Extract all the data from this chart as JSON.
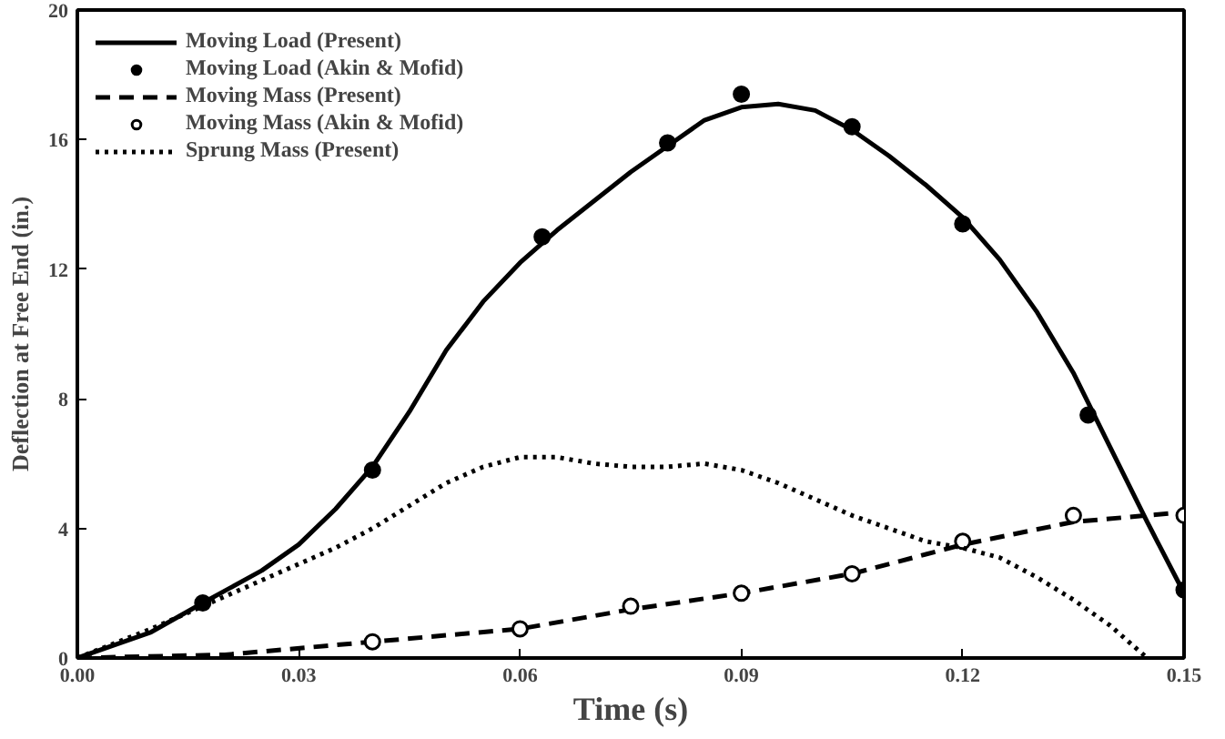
{
  "chart_data": {
    "type": "line",
    "xlabel": "Time (s)",
    "ylabel": "Deflection at Free End (in.)",
    "xlim": [
      0,
      0.15
    ],
    "ylim": [
      0,
      20
    ],
    "xticks": [
      {
        "value": 0,
        "label": "0.00"
      },
      {
        "value": 0.03,
        "label": "0.03"
      },
      {
        "value": 0.06,
        "label": "0.06"
      },
      {
        "value": 0.09,
        "label": "0.09"
      },
      {
        "value": 0.12,
        "label": "0.12"
      },
      {
        "value": 0.15,
        "label": "0.15"
      }
    ],
    "yticks": [
      0,
      4,
      8,
      12,
      16,
      20
    ],
    "grid": false,
    "legend": "top left",
    "series": [
      {
        "name": "Moving Load (Present)",
        "line_style": "solid",
        "color": "#000000",
        "x": [
          0,
          0.01,
          0.017,
          0.025,
          0.03,
          0.035,
          0.04,
          0.045,
          0.05,
          0.055,
          0.06,
          0.065,
          0.07,
          0.075,
          0.08,
          0.085,
          0.09,
          0.095,
          0.1,
          0.105,
          0.11,
          0.115,
          0.12,
          0.125,
          0.13,
          0.135,
          0.14,
          0.145,
          0.15
        ],
        "values": [
          0,
          0.8,
          1.7,
          2.7,
          3.5,
          4.6,
          5.9,
          7.6,
          9.5,
          11.0,
          12.2,
          13.2,
          14.1,
          15.0,
          15.8,
          16.6,
          17.0,
          17.1,
          16.9,
          16.3,
          15.5,
          14.6,
          13.6,
          12.3,
          10.7,
          8.8,
          6.5,
          4.2,
          2.0
        ]
      },
      {
        "name": "Moving Load (Akin & Mofid)",
        "type": "scatter",
        "marker": "circle",
        "color": "#000000",
        "x": [
          0.017,
          0.04,
          0.063,
          0.08,
          0.09,
          0.105,
          0.12,
          0.137,
          0.15
        ],
        "values": [
          1.7,
          5.8,
          13.0,
          15.9,
          17.4,
          16.4,
          13.4,
          7.5,
          2.1
        ]
      },
      {
        "name": "Moving Mass (Present)",
        "line_style": "dashed",
        "color": "#000000",
        "x": [
          0,
          0.02,
          0.04,
          0.06,
          0.075,
          0.09,
          0.105,
          0.12,
          0.135,
          0.15
        ],
        "values": [
          0,
          0.1,
          0.5,
          0.9,
          1.5,
          2.0,
          2.6,
          3.5,
          4.2,
          4.5
        ]
      },
      {
        "name": "Moving Mass (Akin & Mofid)",
        "type": "scatter",
        "marker": "circle_open",
        "color": "#000000",
        "x": [
          0.04,
          0.06,
          0.075,
          0.09,
          0.105,
          0.12,
          0.135,
          0.15
        ],
        "values": [
          0.5,
          0.9,
          1.6,
          2.0,
          2.6,
          3.6,
          4.4,
          4.4
        ]
      },
      {
        "name": "Sprung Mass (Present)",
        "line_style": "dotted",
        "color": "#000000",
        "x": [
          0,
          0.01,
          0.017,
          0.025,
          0.03,
          0.035,
          0.04,
          0.045,
          0.05,
          0.055,
          0.06,
          0.065,
          0.07,
          0.075,
          0.08,
          0.085,
          0.09,
          0.095,
          0.1,
          0.105,
          0.11,
          0.115,
          0.12,
          0.125,
          0.13,
          0.135,
          0.14,
          0.145
        ],
        "values": [
          0,
          0.9,
          1.6,
          2.4,
          2.9,
          3.4,
          4.0,
          4.7,
          5.4,
          5.9,
          6.2,
          6.2,
          6.0,
          5.9,
          5.9,
          6.0,
          5.8,
          5.4,
          4.9,
          4.4,
          4.0,
          3.6,
          3.4,
          3.1,
          2.5,
          1.8,
          1.0,
          0.0
        ]
      }
    ]
  }
}
